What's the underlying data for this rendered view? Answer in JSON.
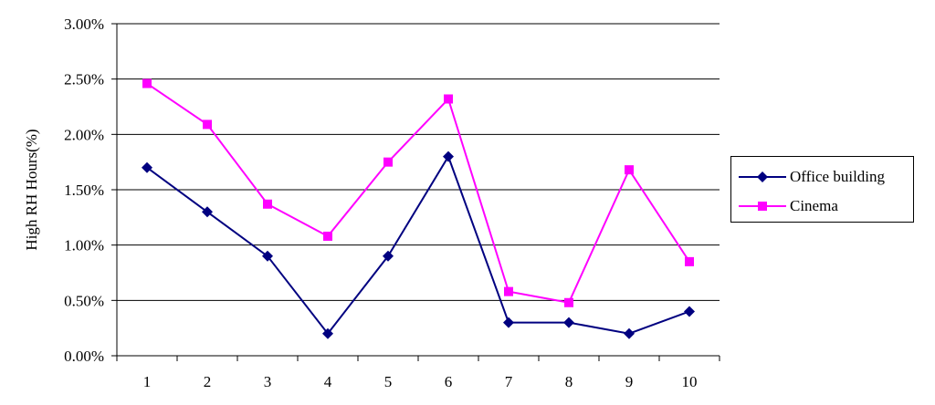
{
  "chart_data": {
    "type": "line",
    "title": "",
    "xlabel": "",
    "ylabel": "High RH Hours(%)",
    "categories": [
      "1",
      "2",
      "3",
      "4",
      "5",
      "6",
      "7",
      "8",
      "9",
      "10"
    ],
    "ylim": [
      0,
      3.0
    ],
    "yticks": [
      "0.00%",
      "0.50%",
      "1.00%",
      "1.50%",
      "2.00%",
      "2.50%",
      "3.00%"
    ],
    "ytick_values": [
      0,
      0.5,
      1.0,
      1.5,
      2.0,
      2.5,
      3.0
    ],
    "grid": true,
    "legend_position": "right",
    "series": [
      {
        "name": "Office building",
        "color": "#000080",
        "marker": "diamond",
        "values": [
          1.7,
          1.3,
          0.9,
          0.2,
          0.9,
          1.8,
          0.3,
          0.3,
          0.2,
          0.4
        ]
      },
      {
        "name": "Cinema",
        "color": "#FF00FF",
        "marker": "square",
        "values": [
          2.46,
          2.09,
          1.37,
          1.08,
          1.75,
          2.32,
          0.58,
          0.48,
          1.68,
          0.85
        ]
      }
    ]
  }
}
